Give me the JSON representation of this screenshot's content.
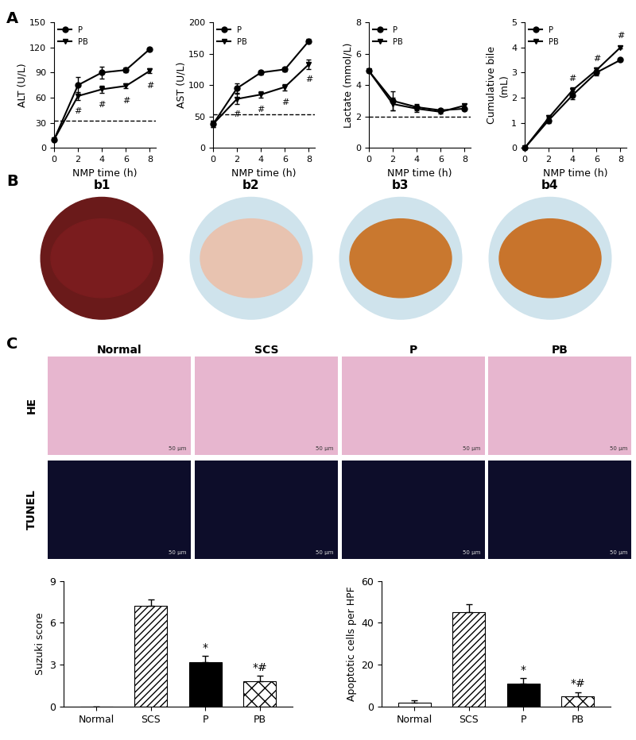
{
  "panel_labels": [
    "A",
    "B",
    "C"
  ],
  "chart_data": [
    {
      "type": "line",
      "xlabel": "NMP time (h)",
      "ylabel": "ALT (U/L)",
      "x": [
        0,
        2,
        4,
        6,
        8
      ],
      "xlim": [
        0,
        8.5
      ],
      "xticks": [
        0,
        2,
        4,
        6,
        8
      ],
      "ylim": [
        0,
        150
      ],
      "yticks": [
        0,
        30,
        60,
        90,
        120,
        150
      ],
      "legend": "upper left",
      "reference_line": 33,
      "series": [
        {
          "name": "P",
          "color": "#000000",
          "marker": "circle",
          "values": [
            10,
            75,
            90,
            93,
            118
          ],
          "errors": [
            1,
            10,
            7,
            3,
            2
          ]
        },
        {
          "name": "PB",
          "color": "#000000",
          "marker": "triangle_down",
          "values": [
            10,
            62,
            70,
            74,
            92
          ],
          "errors": [
            1,
            5,
            4,
            3,
            3
          ],
          "annotations": [
            {
              "x": 2,
              "text": "#"
            },
            {
              "x": 4,
              "text": "#"
            },
            {
              "x": 6,
              "text": "#"
            },
            {
              "x": 8,
              "text": "#"
            }
          ]
        }
      ]
    },
    {
      "type": "line",
      "xlabel": "NMP time (h)",
      "ylabel": "AST (U/L)",
      "x": [
        0,
        2,
        4,
        6,
        8
      ],
      "xlim": [
        0,
        8.5
      ],
      "xticks": [
        0,
        2,
        4,
        6,
        8
      ],
      "ylim": [
        0,
        200
      ],
      "yticks": [
        0,
        50,
        100,
        150,
        200
      ],
      "legend": "upper left",
      "reference_line": 53,
      "series": [
        {
          "name": "P",
          "color": "#000000",
          "marker": "circle",
          "values": [
            38,
            95,
            120,
            125,
            170
          ],
          "errors": [
            5,
            8,
            3,
            3,
            3
          ]
        },
        {
          "name": "PB",
          "color": "#000000",
          "marker": "triangle_down",
          "values": [
            38,
            78,
            85,
            97,
            133
          ],
          "errors": [
            5,
            8,
            5,
            5,
            8
          ],
          "annotations": [
            {
              "x": 2,
              "text": "#"
            },
            {
              "x": 4,
              "text": "#"
            },
            {
              "x": 6,
              "text": "#"
            },
            {
              "x": 8,
              "text": "#"
            }
          ]
        }
      ]
    },
    {
      "type": "line",
      "xlabel": "NMP time (h)",
      "ylabel": "Lactate (mmol/L)",
      "x": [
        0,
        2,
        4,
        6,
        8
      ],
      "xlim": [
        0,
        8.5
      ],
      "xticks": [
        0,
        2,
        4,
        6,
        8
      ],
      "ylim": [
        0,
        8
      ],
      "yticks": [
        0,
        2,
        4,
        6,
        8
      ],
      "legend": "upper left",
      "reference_line": 2,
      "series": [
        {
          "name": "P",
          "color": "#000000",
          "marker": "circle",
          "values": [
            4.9,
            3.0,
            2.6,
            2.4,
            2.5
          ],
          "errors": [
            0.1,
            0.6,
            0.2,
            0.1,
            0.1
          ]
        },
        {
          "name": "PB",
          "color": "#000000",
          "marker": "triangle_down",
          "values": [
            4.9,
            2.8,
            2.5,
            2.3,
            2.7
          ],
          "errors": [
            0.1,
            0.4,
            0.2,
            0.1,
            0.1
          ]
        }
      ]
    },
    {
      "type": "line",
      "xlabel": "NMP time (h)",
      "ylabel": "Cumulative bile\n(mL)",
      "x": [
        0,
        2,
        4,
        6,
        8
      ],
      "xlim": [
        0,
        8.5
      ],
      "xticks": [
        0,
        2,
        4,
        6,
        8
      ],
      "ylim": [
        0,
        5
      ],
      "yticks": [
        0,
        1,
        2,
        3,
        4,
        5
      ],
      "legend": "upper left",
      "series": [
        {
          "name": "P",
          "color": "#000000",
          "marker": "circle",
          "values": [
            0,
            1.1,
            2.1,
            3.0,
            3.5
          ],
          "errors": [
            0,
            0.1,
            0.15,
            0.1,
            0.05
          ]
        },
        {
          "name": "PB",
          "color": "#000000",
          "marker": "triangle_down",
          "values": [
            0,
            1.2,
            2.3,
            3.1,
            4.0
          ],
          "errors": [
            0,
            0.1,
            0.1,
            0.1,
            0.05
          ],
          "annotations": [
            {
              "x": 4,
              "text": "#"
            },
            {
              "x": 6,
              "text": "#"
            },
            {
              "x": 8,
              "text": "#"
            }
          ]
        }
      ]
    },
    {
      "type": "bar",
      "ylabel": "Suzuki score",
      "categories": [
        "Normal",
        "SCS",
        "P",
        "PB"
      ],
      "values": [
        0,
        7.2,
        3.2,
        1.8
      ],
      "errors": [
        0,
        0.45,
        0.45,
        0.4
      ],
      "colors": [
        "#ffffff",
        "#ffffff",
        "#000000",
        "#ffffff"
      ],
      "ylim": [
        0,
        9
      ],
      "yticks": [
        0,
        3,
        6,
        9
      ],
      "annotations": [
        {
          "category": "P",
          "text": "*"
        },
        {
          "category": "PB",
          "text": "*#"
        }
      ]
    },
    {
      "type": "bar",
      "ylabel": "Apoptotic cells per HPF",
      "categories": [
        "Normal",
        "SCS",
        "P",
        "PB"
      ],
      "values": [
        2,
        45,
        11,
        5
      ],
      "errors": [
        1,
        4,
        2.5,
        2
      ],
      "colors": [
        "#ffffff",
        "#ffffff",
        "#000000",
        "#ffffff"
      ],
      "ylim": [
        0,
        60
      ],
      "yticks": [
        0,
        20,
        40,
        60
      ],
      "annotations": [
        {
          "category": "P",
          "text": "*"
        },
        {
          "category": "PB",
          "text": "*#"
        }
      ]
    }
  ],
  "photos": {
    "labels": [
      "b1",
      "b2",
      "b3",
      "b4"
    ]
  },
  "micrographs": {
    "columns": [
      "Normal",
      "SCS",
      "P",
      "PB"
    ],
    "rows": [
      "HE",
      "TUNEL"
    ],
    "scale_bar": "50 μm"
  }
}
